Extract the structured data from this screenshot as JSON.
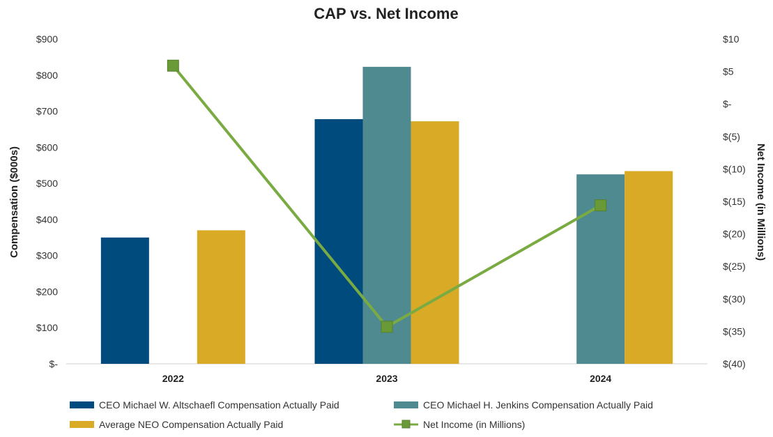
{
  "chart_data": {
    "type": "bar",
    "title": "CAP vs. Net Income",
    "categories": [
      "2022",
      "2023",
      "2024"
    ],
    "ylabel": "Compensation ($000s)",
    "y2label": "Net Income (in Millions)",
    "ylim": [
      0,
      900
    ],
    "y2lim": [
      -40,
      10
    ],
    "y_ticks": [
      "$-",
      "$100",
      "$200",
      "$300",
      "$400",
      "$500",
      "$600",
      "$700",
      "$800",
      "$900"
    ],
    "y_tick_values": [
      0,
      100,
      200,
      300,
      400,
      500,
      600,
      700,
      800,
      900
    ],
    "y2_ticks": [
      "$(40)",
      "$(35)",
      "$(30)",
      "$(25)",
      "$(20)",
      "$(15)",
      "$(10)",
      "$(5)",
      "$-",
      "$5",
      "$10"
    ],
    "y2_tick_values": [
      -40,
      -35,
      -30,
      -25,
      -20,
      -15,
      -10,
      -5,
      0,
      5,
      10
    ],
    "series": [
      {
        "name": "CEO Michael W. Altschaefl Compensation Actually Paid",
        "type": "bar",
        "color": "#004b7d",
        "values": [
          350,
          678,
          null
        ]
      },
      {
        "name": "CEO Michael H. Jenkins Compensation Actually Paid",
        "type": "bar",
        "color": "#4e8a90",
        "values": [
          null,
          823,
          525
        ]
      },
      {
        "name": "Average NEO Compensation Actually Paid",
        "type": "bar",
        "color": "#d9aa25",
        "values": [
          370,
          672,
          534
        ]
      },
      {
        "name": "Net Income (in Millions)",
        "type": "line",
        "axis": "right",
        "color": "#7aab43",
        "marker_color": "#6a9a38",
        "values": [
          5.9,
          -34.3,
          -15.6
        ]
      }
    ],
    "legend_placement": "bottom",
    "grid": false
  }
}
